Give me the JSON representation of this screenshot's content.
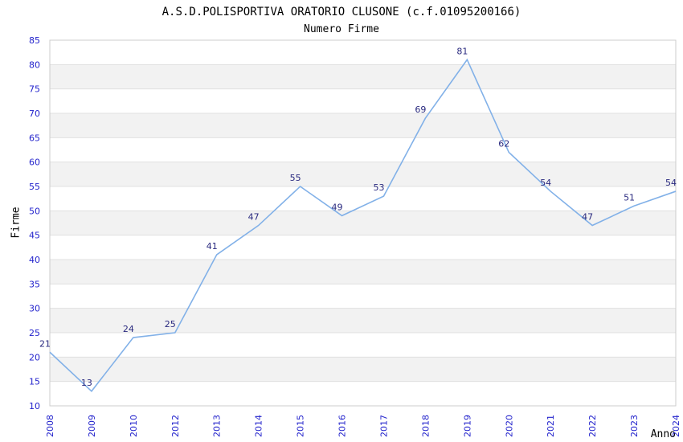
{
  "chart_data": {
    "type": "line",
    "title": "A.S.D.POLISPORTIVA ORATORIO CLUSONE (c.f.01095200166)",
    "subtitle": "Numero Firme",
    "xlabel": "Anno",
    "ylabel": "Firme",
    "categories": [
      "2008",
      "2009",
      "2010",
      "2012",
      "2013",
      "2014",
      "2015",
      "2016",
      "2017",
      "2018",
      "2019",
      "2020",
      "2021",
      "2022",
      "2023",
      "2024"
    ],
    "values": [
      21,
      13,
      24,
      25,
      41,
      47,
      55,
      49,
      53,
      69,
      81,
      62,
      54,
      47,
      51,
      54
    ],
    "ylim": [
      10,
      85
    ],
    "ytick_step": 5,
    "grid": "horizontal-bands",
    "legend": "none",
    "data_labels": "above-points",
    "x_tick_rotation": -90,
    "colors": {
      "line": "#82b1e8",
      "data_label": "#29297f",
      "tick_label": "#2323cc",
      "band_fill": "#f2f2f2",
      "gridline": "#e0e0e0",
      "plot_border": "#cccccc",
      "title_text": "#000000",
      "background": "#ffffff"
    }
  }
}
